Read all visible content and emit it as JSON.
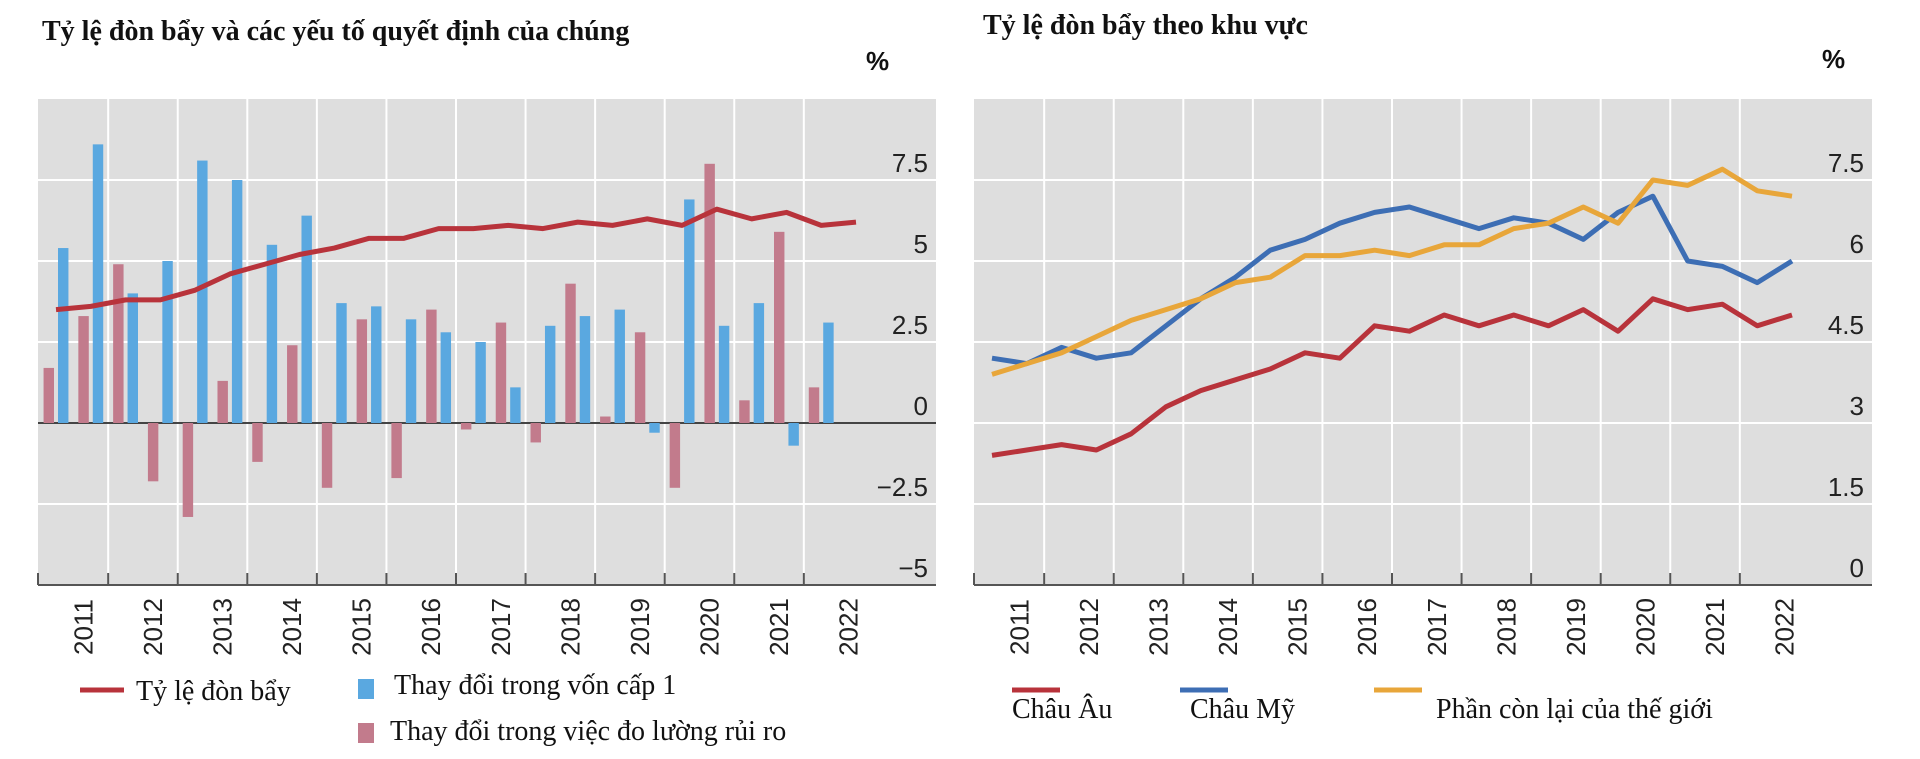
{
  "chart_data": [
    {
      "type": "bar",
      "title": "Tỷ lệ đòn bẩy và các yếu tố quyết định của chúng",
      "unit": "%",
      "ylim": [
        -5,
        10
      ],
      "y_ticks": [
        7.5,
        5,
        2.5,
        0,
        -2.5,
        -5
      ],
      "y_tick_labels": [
        "7.5",
        "5",
        "2.5",
        "0",
        "−2.5",
        "−5"
      ],
      "x_tick_labels": [
        "2011",
        "2012",
        "2013",
        "2014",
        "2015",
        "2016",
        "2017",
        "2018",
        "2019",
        "2020",
        "2021",
        "2022"
      ],
      "periods": 24,
      "series": [
        {
          "name": "Tỷ lệ đòn bẩy",
          "kind": "line",
          "color": "#b8333b",
          "values": [
            3.5,
            3.6,
            3.8,
            3.8,
            4.1,
            4.6,
            4.9,
            5.2,
            5.4,
            5.7,
            5.7,
            6.0,
            6.0,
            6.1,
            6.0,
            6.2,
            6.1,
            6.3,
            6.1,
            6.6,
            6.3,
            6.5,
            6.1,
            6.2
          ]
        },
        {
          "name": "Thay đổi trong vốn cấp 1",
          "kind": "bar",
          "color": "#5aa8e0",
          "values": [
            5.4,
            8.6,
            4.0,
            5.0,
            8.1,
            7.5,
            5.5,
            6.4,
            3.7,
            3.6,
            3.2,
            2.8,
            2.5,
            1.1,
            3.0,
            3.3,
            3.5,
            -0.3,
            6.9,
            3.0,
            3.7,
            -0.7,
            3.1,
            0.0
          ]
        },
        {
          "name": "Thay đổi trong việc đo lường rủi ro",
          "kind": "bar",
          "color": "#c27b8c",
          "values": [
            1.7,
            3.3,
            4.9,
            -1.8,
            -2.9,
            1.3,
            -1.2,
            2.4,
            -2.0,
            3.2,
            -1.7,
            3.5,
            -0.2,
            3.1,
            -0.6,
            4.3,
            0.2,
            2.8,
            -2.0,
            8.0,
            0.7,
            5.9,
            1.1,
            0.0
          ]
        }
      ]
    },
    {
      "type": "line",
      "title": "Tỷ lệ đòn bẩy theo khu vực",
      "unit": "%",
      "ylim": [
        0,
        9
      ],
      "y_ticks": [
        7.5,
        6,
        4.5,
        3,
        1.5,
        0
      ],
      "y_tick_labels": [
        "7.5",
        "6",
        "4.5",
        "3",
        "1.5",
        "0"
      ],
      "x_tick_labels": [
        "2011",
        "2012",
        "2013",
        "2014",
        "2015",
        "2016",
        "2017",
        "2018",
        "2019",
        "2020",
        "2021",
        "2022"
      ],
      "periods": 24,
      "series": [
        {
          "name": "Châu Âu",
          "color": "#b8333b",
          "values": [
            2.4,
            2.5,
            2.6,
            2.5,
            2.8,
            3.3,
            3.6,
            3.8,
            4.0,
            4.3,
            4.2,
            4.8,
            4.7,
            5.0,
            4.8,
            5.0,
            4.8,
            5.1,
            4.7,
            5.3,
            5.1,
            5.2,
            4.8,
            5.0
          ]
        },
        {
          "name": "Châu Mỹ",
          "color": "#3d6eb4",
          "values": [
            4.2,
            4.1,
            4.4,
            4.2,
            4.3,
            4.8,
            5.3,
            5.7,
            6.2,
            6.4,
            6.7,
            6.9,
            7.0,
            6.8,
            6.6,
            6.8,
            6.7,
            6.4,
            6.9,
            7.2,
            6.0,
            5.9,
            5.6,
            6.0
          ]
        },
        {
          "name": "Phần còn lại của thế giới",
          "color": "#e8a63a",
          "values": [
            3.9,
            4.1,
            4.3,
            4.6,
            4.9,
            5.1,
            5.3,
            5.6,
            5.7,
            6.1,
            6.1,
            6.2,
            6.1,
            6.3,
            6.3,
            6.6,
            6.7,
            7.0,
            6.7,
            7.5,
            7.4,
            7.7,
            7.3,
            7.2
          ]
        }
      ]
    }
  ]
}
